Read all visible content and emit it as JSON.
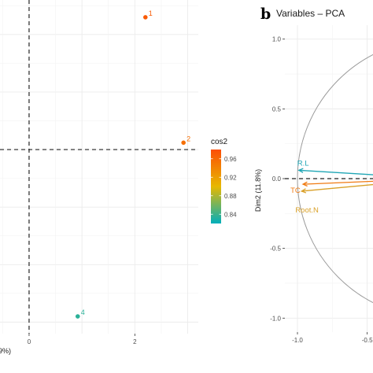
{
  "chart_data": [
    {
      "type": "scatter",
      "panel_label": "",
      "title": "",
      "xlabel": "9%)",
      "ylabel": "",
      "xlim": [
        -0.55,
        3.2
      ],
      "ylim": [
        -1.6,
        1.3
      ],
      "xticks": [
        "0",
        "2"
      ],
      "xtick_values": [
        0,
        2
      ],
      "grid": true,
      "points": [
        {
          "label": "1",
          "x": 2.2,
          "y": 1.15,
          "cos2": 0.97
        },
        {
          "label": "2",
          "x": 2.92,
          "y": 0.06,
          "cos2": 0.955
        },
        {
          "label": "4",
          "x": 0.92,
          "y": -1.45,
          "cos2": 0.835
        }
      ],
      "reference_lines": {
        "x": 0,
        "y": 0
      },
      "legend": {
        "title": "cos2",
        "position": "right",
        "ticks": [
          "0.96",
          "0.92",
          "0.88",
          "0.84"
        ],
        "tick_values": [
          0.96,
          0.92,
          0.88,
          0.84
        ],
        "range": [
          0.82,
          0.98
        ],
        "colors": [
          "#00AFBB",
          "#E7B800",
          "#FC4E07"
        ]
      }
    },
    {
      "type": "vector",
      "panel_label": "b",
      "title": "Variables – PCA",
      "xlabel": "",
      "ylabel": "Dim2 (11.8%)",
      "xlim": [
        -1.1,
        -0.35
      ],
      "ylim": [
        -1.1,
        1.1
      ],
      "xticks": [
        "-1.0",
        "-0.5"
      ],
      "xtick_values": [
        -1.0,
        -0.5
      ],
      "yticks": [
        "1.0",
        "0.5",
        "0.0",
        "-0.5",
        "-1.0"
      ],
      "ytick_values": [
        1.0,
        0.5,
        0.0,
        -0.5,
        -1.0
      ],
      "grid": true,
      "unit_circle": true,
      "vectors": [
        {
          "label": "R.L",
          "x": -0.99,
          "y": 0.06,
          "color": "#1fa6b5"
        },
        {
          "label": "TC",
          "x": -0.96,
          "y": -0.04,
          "color": "#f07a12"
        },
        {
          "label": "Root.N",
          "x": -0.97,
          "y": -0.09,
          "color": "#d9a028"
        }
      ]
    }
  ]
}
